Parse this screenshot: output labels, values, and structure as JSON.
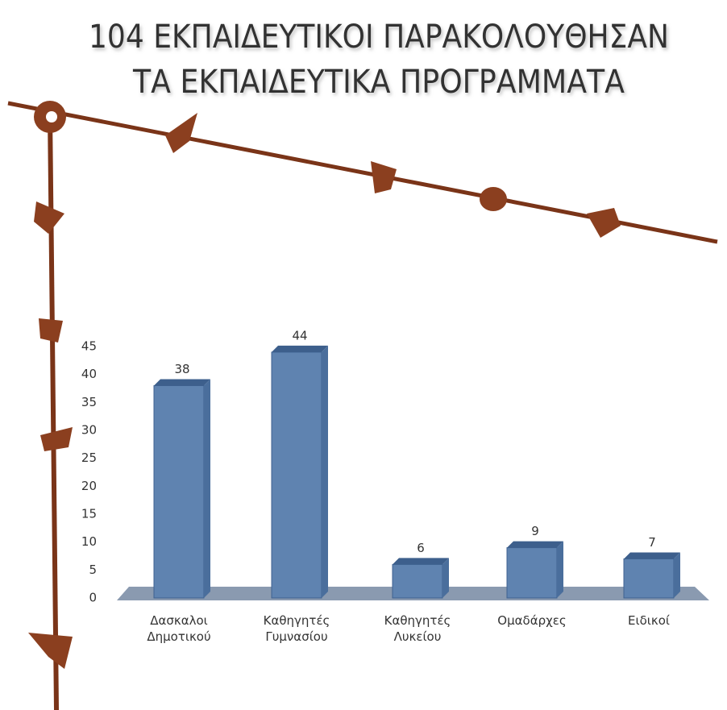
{
  "chart_data": {
    "type": "bar",
    "title": [
      "104 ΕΚΠΑΙΔΕΥΤΙΚΟΙ ΠΑΡΑΚΟΛΟΥΘΗΣΑΝ",
      "ΤΑ ΕΚΠΑΙΔΕΥΤΙΚΑ ΠΡΟΓΡΑΜΜΑΤΑ"
    ],
    "categories": [
      "Δασκαλοι Δημοτικού",
      "Καθηγητές Γυμνασίου",
      "Καθηγητές Λυκείου",
      "Ομαδάρχες",
      "Ειδικοί"
    ],
    "values": [
      38,
      44,
      6,
      9,
      7
    ],
    "color": "#5f83b0",
    "ylim": [
      0,
      45
    ],
    "yticks": [
      0,
      5,
      10,
      15,
      20,
      25,
      30,
      35,
      40,
      45
    ],
    "grid": false
  }
}
